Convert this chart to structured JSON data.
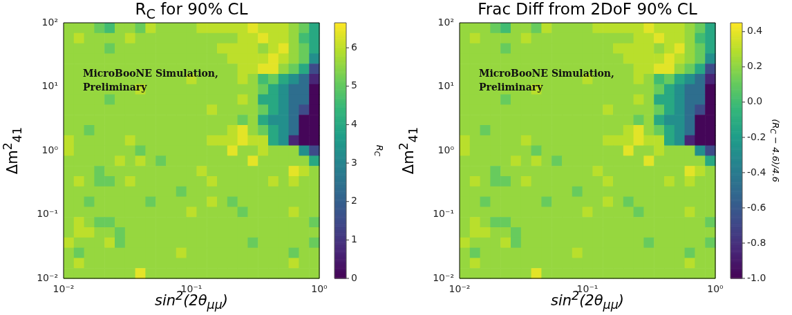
{
  "chart_data": [
    {
      "type": "heatmap",
      "title": "R$_{C}$ for 90% CL",
      "xlabel": "sin$^{2}$(2θ$_{μμ}$)",
      "ylabel": "Δm$^{2}$$_{41}$",
      "clabel": "R$_{C}$",
      "annotations": [
        "MicroBooNE Simulation, Preliminary"
      ],
      "log": "xy",
      "xlim": [
        0.01,
        1
      ],
      "ylim": [
        0.01,
        100
      ],
      "xticks": [
        {
          "value": 0.01,
          "label": "10⁻²"
        },
        {
          "value": 0.1,
          "label": "10⁻¹"
        },
        {
          "value": 1,
          "label": "10⁰"
        }
      ],
      "yticks": [
        {
          "value": 0.01,
          "label": "10⁻²"
        },
        {
          "value": 0.1,
          "label": "10⁻¹"
        },
        {
          "value": 1,
          "label": "10⁰"
        },
        {
          "value": 10,
          "label": "10¹"
        },
        {
          "value": 100,
          "label": "10²"
        }
      ],
      "clim": [
        0,
        6.65
      ],
      "cticks": [
        0,
        1,
        2,
        3,
        4,
        5,
        6
      ],
      "cells": [
        [
          5.6,
          5.6,
          5.6,
          5.1,
          4.6,
          5.6,
          5.6,
          5.1,
          6.0,
          5.6,
          5.6,
          5.6,
          5.6,
          6.0,
          6.0,
          6.0,
          6.0,
          6.0,
          6.4,
          6.0,
          6.0,
          6.0,
          5.6,
          5.1,
          4.0
        ],
        [
          5.6,
          6.0,
          5.6,
          5.6,
          5.6,
          5.6,
          6.0,
          5.6,
          5.6,
          5.6,
          5.6,
          5.6,
          5.6,
          5.6,
          5.6,
          5.6,
          5.6,
          6.0,
          6.0,
          6.4,
          6.0,
          6.0,
          5.6,
          4.6,
          4.0
        ],
        [
          5.6,
          5.6,
          5.6,
          5.6,
          5.1,
          5.6,
          5.6,
          5.6,
          5.6,
          5.6,
          5.6,
          5.6,
          5.6,
          5.6,
          5.6,
          6.0,
          6.0,
          6.0,
          6.0,
          5.6,
          6.0,
          6.4,
          5.6,
          5.1,
          4.0
        ],
        [
          5.6,
          5.6,
          5.6,
          5.6,
          5.6,
          5.6,
          5.6,
          5.6,
          5.6,
          5.6,
          5.6,
          5.6,
          5.6,
          5.6,
          5.6,
          5.6,
          6.0,
          6.0,
          6.0,
          6.0,
          6.4,
          6.0,
          5.6,
          5.1,
          3.3
        ],
        [
          5.6,
          5.6,
          5.6,
          5.6,
          5.6,
          5.6,
          5.6,
          5.6,
          5.6,
          5.6,
          5.6,
          5.6,
          5.6,
          5.6,
          5.6,
          5.6,
          5.6,
          6.0,
          6.0,
          6.4,
          6.4,
          5.6,
          5.1,
          4.0,
          1.5
        ],
        [
          5.6,
          5.6,
          5.6,
          5.6,
          5.6,
          5.6,
          5.6,
          5.6,
          5.6,
          5.6,
          5.6,
          5.6,
          6.0,
          5.6,
          5.6,
          5.6,
          5.6,
          6.0,
          5.6,
          4.6,
          5.1,
          4.0,
          3.3,
          2.4,
          0.7
        ],
        [
          5.6,
          5.6,
          5.6,
          5.6,
          5.6,
          5.6,
          5.6,
          6.0,
          5.6,
          5.6,
          5.6,
          5.6,
          5.6,
          5.6,
          5.6,
          5.6,
          5.6,
          5.6,
          5.6,
          5.1,
          4.0,
          3.3,
          2.4,
          2.4,
          0.1
        ],
        [
          5.6,
          5.6,
          5.6,
          5.6,
          5.1,
          5.6,
          5.6,
          5.6,
          5.6,
          5.6,
          5.6,
          5.6,
          5.6,
          5.6,
          5.6,
          5.6,
          5.6,
          6.0,
          5.6,
          4.0,
          4.0,
          3.3,
          2.4,
          2.4,
          0.1
        ],
        [
          5.6,
          5.6,
          5.6,
          5.6,
          5.6,
          5.6,
          5.6,
          5.6,
          5.6,
          5.6,
          5.6,
          5.6,
          5.6,
          5.6,
          6.0,
          5.6,
          5.6,
          5.6,
          5.6,
          5.1,
          4.0,
          3.3,
          2.4,
          1.5,
          0.1
        ],
        [
          5.6,
          5.6,
          5.6,
          5.6,
          5.6,
          5.6,
          5.6,
          5.6,
          5.6,
          5.6,
          5.6,
          5.6,
          5.6,
          5.6,
          5.6,
          5.6,
          5.6,
          5.1,
          5.6,
          4.0,
          3.3,
          3.3,
          2.4,
          0.1,
          0.1
        ],
        [
          5.6,
          5.6,
          5.1,
          5.6,
          5.6,
          5.6,
          5.6,
          5.6,
          5.6,
          5.6,
          5.6,
          5.6,
          5.6,
          5.6,
          5.6,
          5.6,
          6.0,
          6.4,
          5.6,
          5.1,
          4.0,
          3.3,
          2.4,
          0.1,
          0.1
        ],
        [
          6.0,
          5.6,
          5.6,
          5.6,
          5.6,
          5.6,
          6.0,
          5.6,
          5.6,
          5.6,
          5.6,
          5.6,
          5.6,
          5.6,
          6.0,
          6.0,
          6.0,
          6.4,
          6.0,
          6.0,
          4.0,
          3.3,
          0.7,
          0.1,
          0.1
        ],
        [
          6.0,
          5.6,
          5.6,
          5.6,
          5.6,
          5.6,
          5.6,
          5.1,
          5.6,
          5.6,
          5.6,
          5.6,
          5.6,
          5.6,
          5.6,
          5.6,
          6.4,
          5.6,
          5.6,
          6.0,
          5.6,
          5.6,
          5.6,
          3.3,
          1.5
        ],
        [
          5.6,
          5.6,
          5.6,
          5.6,
          5.6,
          6.0,
          5.6,
          6.0,
          5.6,
          5.1,
          5.6,
          5.6,
          5.6,
          5.6,
          5.6,
          5.6,
          5.6,
          5.6,
          6.4,
          5.6,
          5.6,
          5.6,
          5.6,
          5.6,
          4.0
        ],
        [
          5.6,
          5.6,
          5.6,
          5.1,
          5.6,
          5.6,
          5.6,
          5.6,
          5.6,
          5.6,
          5.6,
          5.6,
          5.6,
          6.0,
          5.6,
          5.6,
          5.6,
          5.6,
          5.6,
          5.6,
          5.6,
          5.6,
          6.4,
          6.0,
          5.6
        ],
        [
          5.6,
          6.0,
          5.6,
          5.1,
          5.1,
          5.6,
          6.0,
          5.6,
          5.6,
          5.6,
          5.6,
          5.6,
          5.6,
          5.6,
          6.0,
          5.6,
          5.6,
          5.6,
          5.6,
          5.6,
          6.0,
          5.6,
          6.0,
          5.6,
          5.6
        ],
        [
          5.6,
          5.6,
          5.6,
          5.6,
          5.6,
          5.6,
          5.6,
          5.6,
          5.6,
          5.6,
          5.6,
          5.1,
          5.6,
          5.6,
          5.6,
          5.6,
          5.6,
          5.6,
          5.6,
          5.6,
          5.6,
          5.6,
          5.6,
          5.6,
          5.6
        ],
        [
          5.6,
          5.6,
          5.1,
          5.6,
          5.6,
          5.6,
          5.6,
          5.6,
          5.1,
          5.6,
          5.6,
          5.6,
          5.6,
          5.6,
          6.0,
          5.6,
          5.1,
          5.6,
          5.6,
          5.6,
          5.6,
          5.6,
          5.6,
          5.6,
          5.6
        ],
        [
          5.6,
          5.6,
          5.6,
          5.6,
          5.6,
          5.6,
          5.6,
          5.6,
          5.6,
          5.6,
          5.6,
          5.6,
          6.0,
          5.6,
          5.6,
          5.6,
          5.6,
          5.1,
          5.6,
          5.6,
          5.6,
          5.6,
          6.0,
          5.6,
          5.6
        ],
        [
          5.6,
          6.0,
          5.6,
          5.1,
          5.1,
          5.6,
          5.6,
          5.6,
          5.6,
          5.6,
          5.6,
          5.6,
          5.6,
          5.6,
          5.6,
          5.6,
          5.6,
          5.6,
          5.6,
          5.6,
          5.6,
          5.6,
          5.6,
          5.6,
          5.1
        ],
        [
          5.6,
          6.0,
          6.0,
          5.6,
          5.6,
          5.1,
          5.6,
          5.6,
          5.6,
          5.6,
          5.6,
          5.6,
          5.6,
          5.6,
          5.6,
          5.6,
          5.6,
          5.6,
          5.6,
          5.6,
          5.6,
          5.6,
          5.6,
          5.6,
          5.6
        ],
        [
          6.0,
          5.6,
          5.6,
          5.6,
          6.0,
          5.1,
          5.6,
          5.6,
          5.6,
          5.6,
          5.6,
          5.6,
          5.6,
          5.6,
          5.6,
          5.6,
          5.6,
          5.6,
          5.1,
          5.6,
          5.6,
          5.6,
          5.6,
          5.6,
          5.1
        ],
        [
          5.6,
          5.1,
          5.6,
          5.6,
          5.6,
          5.6,
          5.6,
          5.6,
          5.6,
          5.6,
          5.6,
          6.0,
          5.6,
          5.6,
          5.6,
          5.6,
          5.6,
          5.6,
          5.6,
          5.6,
          5.6,
          5.6,
          5.1,
          5.6,
          5.6
        ],
        [
          5.6,
          6.0,
          5.6,
          5.6,
          5.6,
          5.6,
          5.6,
          5.6,
          5.6,
          5.6,
          5.6,
          5.6,
          5.6,
          5.6,
          5.6,
          5.6,
          5.6,
          5.6,
          5.6,
          5.6,
          5.6,
          5.6,
          6.0,
          5.6,
          5.6
        ],
        [
          5.6,
          5.6,
          5.6,
          5.6,
          5.6,
          5.6,
          5.6,
          6.4,
          5.6,
          5.6,
          5.6,
          5.6,
          5.6,
          5.6,
          5.6,
          5.6,
          5.6,
          5.6,
          5.6,
          5.6,
          5.6,
          5.6,
          5.6,
          5.6,
          5.6
        ]
      ]
    },
    {
      "type": "heatmap",
      "title": "Frac Diff from 2DoF 90% CL",
      "xlabel": "sin$^{2}$(2θ$_{μμ}$)",
      "ylabel": "Δm$^{2}$$_{41}$",
      "clabel": "(R$_{C}$ − 4.6)/4.6",
      "annotations": [
        "MicroBooNE Simulation, Preliminary"
      ],
      "log": "xy",
      "xlim": [
        0.01,
        1
      ],
      "ylim": [
        0.01,
        100
      ],
      "xticks": [
        {
          "value": 0.01,
          "label": "10⁻²"
        },
        {
          "value": 0.1,
          "label": "10⁻¹"
        },
        {
          "value": 1,
          "label": "10⁰"
        }
      ],
      "yticks": [
        {
          "value": 0.01,
          "label": "10⁻²"
        },
        {
          "value": 0.1,
          "label": "10⁻¹"
        },
        {
          "value": 1,
          "label": "10⁰"
        },
        {
          "value": 10,
          "label": "10¹"
        },
        {
          "value": 100,
          "label": "10²"
        }
      ],
      "clim": [
        -1,
        0.45
      ],
      "cticks": [
        {
          "value": -1,
          "label": "-1.0"
        },
        {
          "value": -0.8,
          "label": "-0.8"
        },
        {
          "value": -0.6,
          "label": "-0.6"
        },
        {
          "value": -0.4,
          "label": "-0.4"
        },
        {
          "value": -0.2,
          "label": "-0.2"
        },
        {
          "value": 0,
          "label": "0.0"
        },
        {
          "value": 0.2,
          "label": "0.2"
        },
        {
          "value": 0.4,
          "label": "0.4"
        }
      ],
      "cells": [
        [
          0.22,
          0.22,
          0.22,
          0.11,
          0.0,
          0.22,
          0.22,
          0.11,
          0.3,
          0.22,
          0.22,
          0.22,
          0.22,
          0.3,
          0.3,
          0.3,
          0.3,
          0.3,
          0.39,
          0.3,
          0.3,
          0.3,
          0.22,
          0.11,
          -0.13
        ],
        [
          0.22,
          0.3,
          0.22,
          0.22,
          0.22,
          0.22,
          0.3,
          0.22,
          0.22,
          0.22,
          0.22,
          0.22,
          0.22,
          0.22,
          0.22,
          0.22,
          0.22,
          0.3,
          0.3,
          0.39,
          0.3,
          0.3,
          0.22,
          0.0,
          -0.13
        ],
        [
          0.22,
          0.22,
          0.22,
          0.22,
          0.11,
          0.22,
          0.22,
          0.22,
          0.22,
          0.22,
          0.22,
          0.22,
          0.22,
          0.22,
          0.22,
          0.3,
          0.3,
          0.3,
          0.3,
          0.22,
          0.3,
          0.39,
          0.22,
          0.11,
          -0.13
        ],
        [
          0.22,
          0.22,
          0.22,
          0.22,
          0.22,
          0.22,
          0.22,
          0.22,
          0.22,
          0.22,
          0.22,
          0.22,
          0.22,
          0.22,
          0.22,
          0.22,
          0.3,
          0.3,
          0.3,
          0.3,
          0.39,
          0.3,
          0.22,
          0.11,
          -0.28
        ],
        [
          0.22,
          0.22,
          0.22,
          0.22,
          0.22,
          0.22,
          0.22,
          0.22,
          0.22,
          0.22,
          0.22,
          0.22,
          0.22,
          0.22,
          0.22,
          0.22,
          0.22,
          0.3,
          0.3,
          0.39,
          0.39,
          0.22,
          0.11,
          -0.13,
          -0.67
        ],
        [
          0.22,
          0.22,
          0.22,
          0.22,
          0.22,
          0.22,
          0.22,
          0.22,
          0.22,
          0.22,
          0.22,
          0.22,
          0.3,
          0.22,
          0.22,
          0.22,
          0.22,
          0.3,
          0.22,
          0.0,
          0.11,
          -0.13,
          -0.28,
          -0.48,
          -0.85
        ],
        [
          0.22,
          0.22,
          0.22,
          0.22,
          0.22,
          0.22,
          0.22,
          0.3,
          0.22,
          0.22,
          0.22,
          0.22,
          0.22,
          0.22,
          0.22,
          0.22,
          0.22,
          0.22,
          0.22,
          0.11,
          -0.13,
          -0.28,
          -0.48,
          -0.48,
          -0.98
        ],
        [
          0.22,
          0.22,
          0.22,
          0.22,
          0.11,
          0.22,
          0.22,
          0.22,
          0.22,
          0.22,
          0.22,
          0.22,
          0.22,
          0.22,
          0.22,
          0.22,
          0.22,
          0.3,
          0.22,
          -0.13,
          -0.13,
          -0.28,
          -0.48,
          -0.48,
          -0.98
        ],
        [
          0.22,
          0.22,
          0.22,
          0.22,
          0.22,
          0.22,
          0.22,
          0.22,
          0.22,
          0.22,
          0.22,
          0.22,
          0.22,
          0.22,
          0.3,
          0.22,
          0.22,
          0.22,
          0.22,
          0.11,
          -0.13,
          -0.28,
          -0.48,
          -0.67,
          -0.98
        ],
        [
          0.22,
          0.22,
          0.22,
          0.22,
          0.22,
          0.22,
          0.22,
          0.22,
          0.22,
          0.22,
          0.22,
          0.22,
          0.22,
          0.22,
          0.22,
          0.22,
          0.22,
          0.11,
          0.22,
          -0.13,
          -0.28,
          -0.28,
          -0.48,
          -0.98,
          -0.98
        ],
        [
          0.22,
          0.22,
          0.11,
          0.22,
          0.22,
          0.22,
          0.22,
          0.22,
          0.22,
          0.22,
          0.22,
          0.22,
          0.22,
          0.22,
          0.22,
          0.22,
          0.3,
          0.39,
          0.22,
          0.11,
          -0.13,
          -0.28,
          -0.48,
          -0.98,
          -0.98
        ],
        [
          0.3,
          0.22,
          0.22,
          0.22,
          0.22,
          0.22,
          0.3,
          0.22,
          0.22,
          0.22,
          0.22,
          0.22,
          0.22,
          0.22,
          0.3,
          0.3,
          0.3,
          0.39,
          0.3,
          0.3,
          -0.13,
          -0.28,
          -0.85,
          -0.98,
          -0.98
        ],
        [
          0.3,
          0.22,
          0.22,
          0.22,
          0.22,
          0.22,
          0.22,
          0.11,
          0.22,
          0.22,
          0.22,
          0.22,
          0.22,
          0.22,
          0.22,
          0.22,
          0.39,
          0.22,
          0.22,
          0.3,
          0.22,
          0.22,
          0.22,
          -0.28,
          -0.67
        ],
        [
          0.22,
          0.22,
          0.22,
          0.22,
          0.22,
          0.3,
          0.22,
          0.3,
          0.22,
          0.11,
          0.22,
          0.22,
          0.22,
          0.22,
          0.22,
          0.22,
          0.22,
          0.22,
          0.39,
          0.22,
          0.22,
          0.22,
          0.22,
          0.22,
          -0.13
        ],
        [
          0.22,
          0.22,
          0.22,
          0.11,
          0.22,
          0.22,
          0.22,
          0.22,
          0.22,
          0.22,
          0.22,
          0.22,
          0.22,
          0.3,
          0.22,
          0.22,
          0.22,
          0.22,
          0.22,
          0.22,
          0.22,
          0.22,
          0.39,
          0.3,
          0.22
        ],
        [
          0.22,
          0.3,
          0.22,
          0.11,
          0.11,
          0.22,
          0.3,
          0.22,
          0.22,
          0.22,
          0.22,
          0.22,
          0.22,
          0.22,
          0.3,
          0.22,
          0.22,
          0.22,
          0.22,
          0.22,
          0.3,
          0.22,
          0.3,
          0.22,
          0.22
        ],
        [
          0.22,
          0.22,
          0.22,
          0.22,
          0.22,
          0.22,
          0.22,
          0.22,
          0.22,
          0.22,
          0.22,
          0.11,
          0.22,
          0.22,
          0.22,
          0.22,
          0.22,
          0.22,
          0.22,
          0.22,
          0.22,
          0.22,
          0.22,
          0.22,
          0.22
        ],
        [
          0.22,
          0.22,
          0.11,
          0.22,
          0.22,
          0.22,
          0.22,
          0.22,
          0.11,
          0.22,
          0.22,
          0.22,
          0.22,
          0.22,
          0.3,
          0.22,
          0.11,
          0.22,
          0.22,
          0.22,
          0.22,
          0.22,
          0.22,
          0.22,
          0.22
        ],
        [
          0.22,
          0.22,
          0.22,
          0.22,
          0.22,
          0.22,
          0.22,
          0.22,
          0.22,
          0.22,
          0.22,
          0.22,
          0.3,
          0.22,
          0.22,
          0.22,
          0.22,
          0.11,
          0.22,
          0.22,
          0.22,
          0.22,
          0.3,
          0.22,
          0.22
        ],
        [
          0.22,
          0.3,
          0.22,
          0.11,
          0.11,
          0.22,
          0.22,
          0.22,
          0.22,
          0.22,
          0.22,
          0.22,
          0.22,
          0.22,
          0.22,
          0.22,
          0.22,
          0.22,
          0.22,
          0.22,
          0.22,
          0.22,
          0.22,
          0.22,
          0.11
        ],
        [
          0.22,
          0.3,
          0.3,
          0.22,
          0.22,
          0.11,
          0.22,
          0.22,
          0.22,
          0.22,
          0.22,
          0.22,
          0.22,
          0.22,
          0.22,
          0.22,
          0.22,
          0.22,
          0.22,
          0.22,
          0.22,
          0.22,
          0.22,
          0.22,
          0.22
        ],
        [
          0.3,
          0.22,
          0.22,
          0.22,
          0.3,
          0.11,
          0.22,
          0.22,
          0.22,
          0.22,
          0.22,
          0.22,
          0.22,
          0.22,
          0.22,
          0.22,
          0.22,
          0.22,
          0.11,
          0.22,
          0.22,
          0.22,
          0.22,
          0.22,
          0.11
        ],
        [
          0.22,
          0.11,
          0.22,
          0.22,
          0.22,
          0.22,
          0.22,
          0.22,
          0.22,
          0.22,
          0.22,
          0.3,
          0.22,
          0.22,
          0.22,
          0.22,
          0.22,
          0.22,
          0.22,
          0.22,
          0.22,
          0.22,
          0.11,
          0.22,
          0.22
        ],
        [
          0.22,
          0.3,
          0.22,
          0.22,
          0.22,
          0.22,
          0.22,
          0.22,
          0.22,
          0.22,
          0.22,
          0.22,
          0.22,
          0.22,
          0.22,
          0.22,
          0.22,
          0.22,
          0.22,
          0.22,
          0.22,
          0.22,
          0.3,
          0.22,
          0.22
        ],
        [
          0.22,
          0.22,
          0.22,
          0.22,
          0.22,
          0.22,
          0.22,
          0.39,
          0.22,
          0.22,
          0.22,
          0.22,
          0.22,
          0.22,
          0.22,
          0.22,
          0.22,
          0.22,
          0.22,
          0.22,
          0.22,
          0.22,
          0.22,
          0.22,
          0.22
        ]
      ]
    }
  ]
}
